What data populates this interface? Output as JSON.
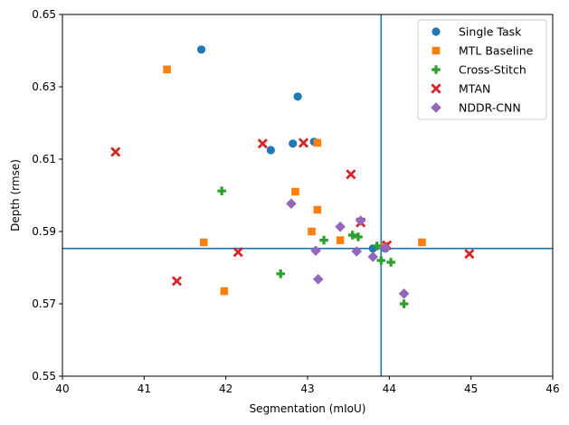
{
  "chart_data": {
    "type": "scatter",
    "title": "",
    "xlabel": "Segmentation (mIoU)",
    "ylabel": "Depth (rmse)",
    "xlim": [
      40,
      46
    ],
    "ylim": [
      0.55,
      0.65
    ],
    "xticks": [
      "40",
      "41",
      "42",
      "43",
      "44",
      "45",
      "46"
    ],
    "yticks": [
      "0.55",
      "0.57",
      "0.59",
      "0.61",
      "0.63",
      "0.65"
    ],
    "grid": false,
    "legend_position": "top-right",
    "reference_lines": {
      "vertical_x": 43.9,
      "horizontal_y": 0.5853,
      "color": "#1f77b4"
    },
    "series": [
      {
        "name": "Single Task",
        "marker": "circle",
        "color": "#1f77b4",
        "points": [
          {
            "x": 41.7,
            "y": 0.6403
          },
          {
            "x": 42.88,
            "y": 0.6273
          },
          {
            "x": 42.82,
            "y": 0.6143
          },
          {
            "x": 43.08,
            "y": 0.6148
          },
          {
            "x": 42.55,
            "y": 0.6125
          },
          {
            "x": 43.8,
            "y": 0.5853
          },
          {
            "x": 43.95,
            "y": 0.5853
          }
        ]
      },
      {
        "name": "MTL Baseline",
        "marker": "square",
        "color": "#ff7f0e",
        "points": [
          {
            "x": 41.28,
            "y": 0.6348
          },
          {
            "x": 43.12,
            "y": 0.6145
          },
          {
            "x": 42.85,
            "y": 0.601
          },
          {
            "x": 43.12,
            "y": 0.596
          },
          {
            "x": 43.05,
            "y": 0.59
          },
          {
            "x": 41.73,
            "y": 0.587
          },
          {
            "x": 43.4,
            "y": 0.5876
          },
          {
            "x": 44.4,
            "y": 0.587
          },
          {
            "x": 41.98,
            "y": 0.5735
          },
          {
            "x": 43.95,
            "y": 0.586
          }
        ]
      },
      {
        "name": "Cross-Stitch",
        "marker": "plus",
        "color": "#2ca02c",
        "points": [
          {
            "x": 41.95,
            "y": 0.6012
          },
          {
            "x": 43.2,
            "y": 0.5876
          },
          {
            "x": 43.55,
            "y": 0.589
          },
          {
            "x": 43.62,
            "y": 0.5885
          },
          {
            "x": 43.85,
            "y": 0.586
          },
          {
            "x": 43.9,
            "y": 0.582
          },
          {
            "x": 44.02,
            "y": 0.5815
          },
          {
            "x": 42.67,
            "y": 0.5783
          },
          {
            "x": 44.18,
            "y": 0.57
          }
        ]
      },
      {
        "name": "MTAN",
        "marker": "x",
        "color": "#d62728",
        "points": [
          {
            "x": 40.65,
            "y": 0.612
          },
          {
            "x": 42.45,
            "y": 0.6143
          },
          {
            "x": 42.95,
            "y": 0.6145
          },
          {
            "x": 43.53,
            "y": 0.6058
          },
          {
            "x": 43.65,
            "y": 0.5925
          },
          {
            "x": 42.15,
            "y": 0.5843
          },
          {
            "x": 43.97,
            "y": 0.5862
          },
          {
            "x": 44.98,
            "y": 0.5838
          },
          {
            "x": 41.4,
            "y": 0.5763
          }
        ]
      },
      {
        "name": "NDDR-CNN",
        "marker": "diamond",
        "color": "#9467bd",
        "points": [
          {
            "x": 42.8,
            "y": 0.5977
          },
          {
            "x": 43.65,
            "y": 0.593
          },
          {
            "x": 43.4,
            "y": 0.5913
          },
          {
            "x": 43.1,
            "y": 0.5847
          },
          {
            "x": 43.6,
            "y": 0.5845
          },
          {
            "x": 43.8,
            "y": 0.583
          },
          {
            "x": 43.95,
            "y": 0.5855
          },
          {
            "x": 43.13,
            "y": 0.5768
          },
          {
            "x": 44.18,
            "y": 0.5728
          }
        ]
      }
    ]
  }
}
